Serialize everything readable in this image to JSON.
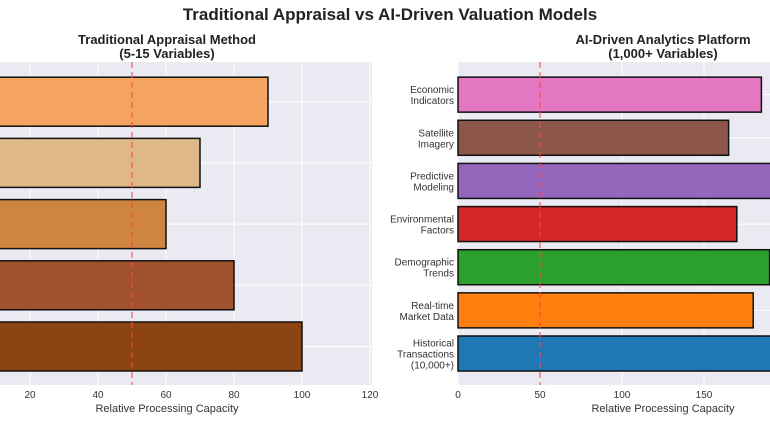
{
  "title": "Traditional Appraisal vs AI-Driven Valuation Models",
  "chart_data": [
    {
      "type": "bar",
      "orientation": "horizontal",
      "title": "Traditional Appraisal Method\n(5-15 Variables)",
      "xlabel": "Relative Processing Capacity",
      "xticks": [
        20,
        40,
        60,
        80,
        100,
        120
      ],
      "xlim": [
        0,
        120
      ],
      "grid": true,
      "reference_line": {
        "x": 50,
        "color": "#ff4444",
        "style": "dashed"
      },
      "categories": [
        "",
        "",
        "",
        "",
        ""
      ],
      "values": [
        100,
        80,
        60,
        70,
        90
      ],
      "colors": [
        "#8b4513",
        "#a0522d",
        "#cd853f",
        "#deb887",
        "#f4a460"
      ]
    },
    {
      "type": "bar",
      "orientation": "horizontal",
      "title": "AI-Driven Analytics Platform\n(1,000+ Variables)",
      "xlabel": "Relative Processing Capacity",
      "xticks": [
        0,
        50,
        100,
        150
      ],
      "xlim": [
        0,
        190
      ],
      "grid": true,
      "reference_line": {
        "x": 50,
        "color": "#ff4444",
        "style": "dashed"
      },
      "categories": [
        "Historical\nTransactions\n(10,000+)",
        "Real-time\nMarket Data",
        "Demographic\nTrends",
        "Environmental\nFactors",
        "Predictive\nModeling",
        "Satellite\nImagery",
        "Economic\nIndicators"
      ],
      "values": [
        200,
        180,
        190,
        170,
        195,
        165,
        185
      ],
      "colors": [
        "#1f77b4",
        "#ff7f0e",
        "#2ca02c",
        "#d62728",
        "#9467bd",
        "#8c564b",
        "#e377c2"
      ]
    }
  ]
}
